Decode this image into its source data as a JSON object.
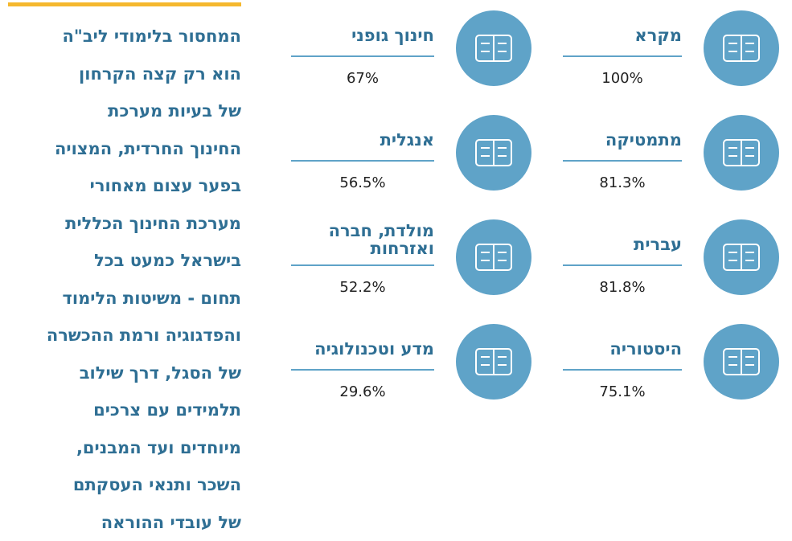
{
  "paragraph": [
    "המחסור בלימודי ליב\"ה",
    "הוא רק קצה הקרחון",
    "של בעיות מערכת",
    "החינוך החרדית, המצויה",
    "בפער עצום מאחורי",
    "מערכת החינוך הכללית",
    "בישראל כמעט בכל",
    "תחום - משיטות הלימוד",
    "והפדגוגיה ורמת ההכשרה",
    "של הסגל, דרך שילוב",
    "תלמידים עם צרכים",
    "מיוחדים ועד המבנים,",
    "השכר ותנאי העסקתם",
    "של עובדי ההוראה"
  ],
  "items": [
    {
      "title": [
        "מקרא"
      ],
      "value": "100%"
    },
    {
      "title": [
        "חינוך גופני"
      ],
      "value": "67%"
    },
    {
      "title": [
        "מתמטיקה"
      ],
      "value": "81.3%"
    },
    {
      "title": [
        "אנגלית"
      ],
      "value": "56.5%"
    },
    {
      "title": [
        "עברית"
      ],
      "value": "81.8%"
    },
    {
      "title": [
        "מולדת, חברה",
        "ואזרחות"
      ],
      "value": "52.2%"
    },
    {
      "title": [
        "היסטוריה"
      ],
      "value": "75.1%"
    },
    {
      "title": [
        "מדע וטכנולוגיה"
      ],
      "value": "29.6%"
    }
  ]
}
